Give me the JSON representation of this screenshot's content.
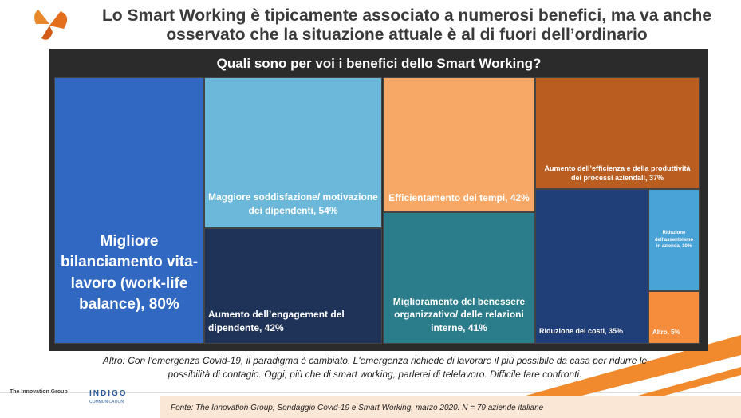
{
  "header": {
    "title": "Lo Smart Working è tipicamente associato a numerosi benefici, ma va anche osservato che la situazione attuale è al di fuori dell’ordinario"
  },
  "chart_data": {
    "type": "treemap",
    "title": "Quali sono per voi i benefici dello Smart Working?",
    "categories": [
      "Migliore bilanciamento vita-lavoro (work-life balance), 80%",
      "Maggiore soddisfazione/ motivazione dei dipendenti, 54%",
      "Aumento dell’engagement del dipendente, 42%",
      "Efficientamento dei tempi, 42%",
      "Miglioramento del benessere organizzativo/ delle relazioni interne, 41%",
      "Aumento dell’efficienza e della produttività dei processi aziendali, 37%",
      "Riduzione dei costi, 35%",
      "Riduzione dell’assenteismo in azienda, 10%",
      "Altro, 5%"
    ],
    "values": [
      80,
      54,
      42,
      42,
      41,
      37,
      35,
      10,
      5
    ],
    "colors": [
      "#3068c2",
      "#6cb8da",
      "#1f3358",
      "#f7a866",
      "#2c7d8b",
      "#b95d20",
      "#203f78",
      "#4aa3d6",
      "#f68d3c"
    ]
  },
  "note": "Altro: Con l'emergenza Covid-19, il paradigma è cambiato. L'emergenza richiede di lavorare il più possibile da casa per ridurre le possibilità di contagio. Oggi, più che di smart working, parlerei di telelavoro. Difficile fare confronti.",
  "source": "Fonte: The Innovation Group, Sondaggio Covid-19 e Smart Working, marzo 2020. N = 79  aziende italiane",
  "logos": {
    "left": "The Innovation Group",
    "right": "INDIGO",
    "right_sub": "COMMUNICATION"
  }
}
